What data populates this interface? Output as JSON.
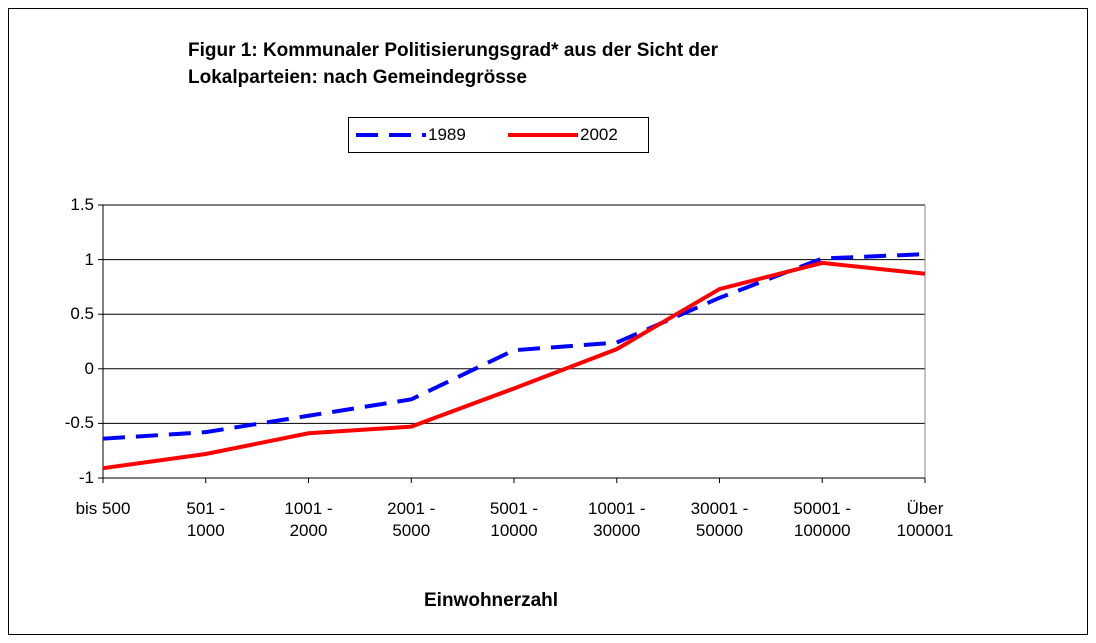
{
  "chart_data": {
    "type": "line",
    "title": "Figur 1: Kommunaler Politisierungsgrad* aus der Sicht der\nLokalparteien: nach Gemeindegrösse",
    "x_label": "Einwohnerzahl",
    "categories": [
      "bis 500",
      "501 -\n1000",
      "1001 -\n2000",
      "2001 -\n5000",
      "5001 -\n10000",
      "10001 -\n30000",
      "30001 -\n50000",
      "50001 -\n100000",
      "Über\n100001"
    ],
    "series": [
      {
        "name": "1989",
        "color": "#0000ff",
        "dash": true,
        "values": [
          -0.64,
          -0.58,
          -0.43,
          -0.28,
          0.17,
          0.24,
          0.65,
          1.01,
          1.05
        ]
      },
      {
        "name": "2002",
        "color": "#ff0000",
        "dash": false,
        "values": [
          -0.91,
          -0.78,
          -0.59,
          -0.53,
          -0.18,
          0.18,
          0.73,
          0.97,
          0.87
        ]
      }
    ],
    "ylim": [
      -1,
      1.5
    ],
    "yticks": [
      -1,
      -0.5,
      0,
      0.5,
      1,
      1.5
    ],
    "grid": true,
    "legend": "top"
  }
}
